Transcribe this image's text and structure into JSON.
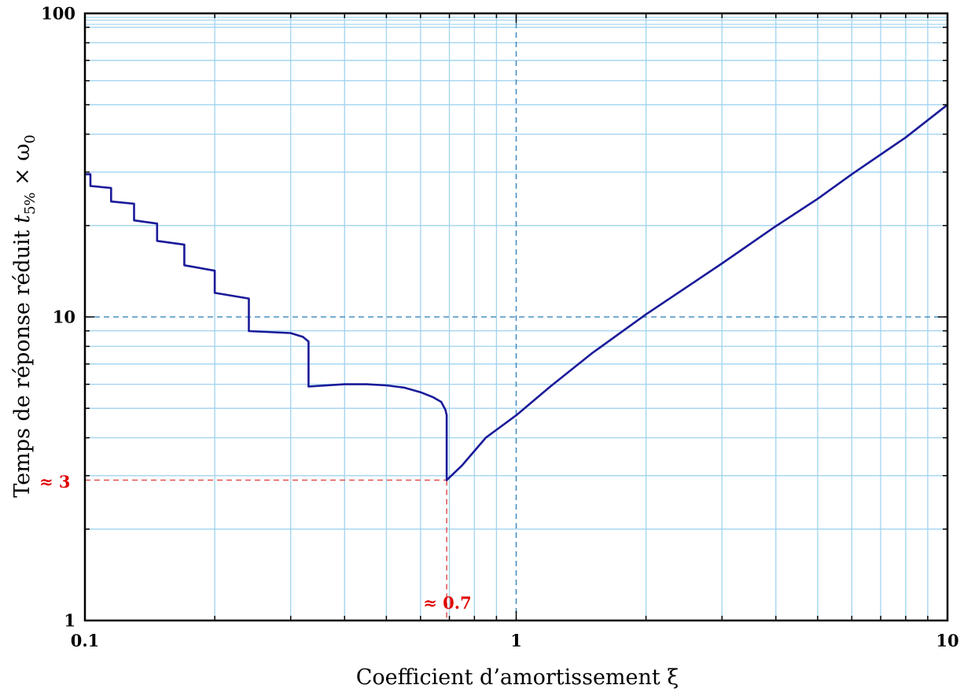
{
  "chart_data": {
    "type": "line",
    "x_scale": "log",
    "y_scale": "log",
    "xlim": [
      0.1,
      10
    ],
    "ylim": [
      1,
      100
    ],
    "grid": true,
    "x_ticks": [
      "0.1",
      "1",
      "10"
    ],
    "y_ticks": [
      "1",
      "10",
      "100"
    ],
    "xlabel": "Coefficient d’amortissement ξ",
    "ylabel_main": "Temps de réponse réduit ",
    "ylabel_t": "t",
    "ylabel_sub": "5%",
    "ylabel_times": " × ω",
    "ylabel_sub2": "0",
    "annotations": {
      "x_marker": {
        "label": "≈ 0.7",
        "x": 0.69,
        "y": 2.9
      },
      "y_marker": {
        "label": "≈ 3",
        "x": 0.69,
        "y": 2.9
      },
      "ref_lines": {
        "x": 1,
        "y": 10
      }
    },
    "series": [
      {
        "color": "#1a1a9a",
        "points": [
          [
            0.1,
            29.5
          ],
          [
            0.103,
            29.5
          ],
          [
            0.103,
            27.0
          ],
          [
            0.115,
            26.6
          ],
          [
            0.115,
            24.0
          ],
          [
            0.13,
            23.6
          ],
          [
            0.13,
            20.8
          ],
          [
            0.147,
            20.3
          ],
          [
            0.147,
            17.8
          ],
          [
            0.17,
            17.3
          ],
          [
            0.17,
            14.8
          ],
          [
            0.2,
            14.2
          ],
          [
            0.2,
            12.0
          ],
          [
            0.24,
            11.5
          ],
          [
            0.24,
            8.98
          ],
          [
            0.3,
            8.85
          ],
          [
            0.32,
            8.6
          ],
          [
            0.33,
            8.3
          ],
          [
            0.33,
            5.9
          ],
          [
            0.4,
            6.0
          ],
          [
            0.45,
            6.0
          ],
          [
            0.5,
            5.95
          ],
          [
            0.55,
            5.85
          ],
          [
            0.6,
            5.65
          ],
          [
            0.64,
            5.45
          ],
          [
            0.67,
            5.25
          ],
          [
            0.685,
            4.95
          ],
          [
            0.69,
            4.75
          ],
          [
            0.69,
            2.9
          ],
          [
            0.75,
            3.25
          ],
          [
            0.85,
            4.0
          ],
          [
            1.0,
            4.74
          ],
          [
            1.2,
            5.9
          ],
          [
            1.5,
            7.6
          ],
          [
            2.0,
            10.2
          ],
          [
            3.0,
            15.0
          ],
          [
            4.0,
            19.9
          ],
          [
            5.0,
            24.5
          ],
          [
            6.0,
            29.5
          ],
          [
            8.0,
            39.0
          ],
          [
            10.0,
            50.0
          ]
        ]
      }
    ]
  }
}
